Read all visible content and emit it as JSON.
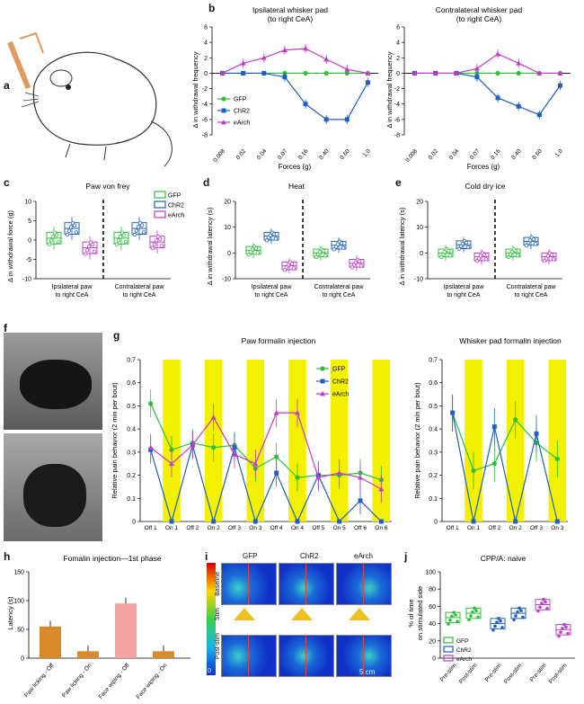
{
  "labels": {
    "a": "a",
    "b": "b",
    "c": "c",
    "d": "d",
    "e": "e",
    "f": "f",
    "g": "g",
    "h": "h",
    "i": "i",
    "j": "j"
  },
  "colors": {
    "gfp": "#2bbf3a",
    "chr2": "#1f5fbf",
    "earch": "#c03cc8",
    "yellow": "#f3f000",
    "orange": "#d98a2b",
    "pink": "#f4a3a3"
  },
  "panel_b": {
    "left_title": "Ipsilateral whisker pad\n(to right CeA)",
    "right_title": "Contralateral whisker pad\n(to right CeA)",
    "ylabel": "Δ in withdrawal frequency",
    "xlabel": "Forces (g)",
    "legend": [
      "GFP",
      "ChR2",
      "eArch"
    ]
  },
  "panel_c": {
    "title": "Paw von frey",
    "ylabel": "Δ in withdrawal force (g)",
    "cats": [
      "Ipsilateral paw\nto right CeA",
      "Contralateral paw\nto right CeA"
    ],
    "legend": [
      "GFP",
      "ChR2",
      "eArch"
    ]
  },
  "panel_d": {
    "title": "Heat",
    "ylabel": "Δ in withdrawal latency (s)",
    "cats": [
      "Ipsilateral paw\nto right CeA",
      "Contralateral paw\nto right CeA"
    ]
  },
  "panel_e": {
    "title": "Cold dry ice",
    "ylabel": "Δ in withdrawal latency (s)",
    "cats": [
      "Ipsilateral paw\nto right CeA",
      "Contralateral paw\nto right CeA"
    ]
  },
  "panel_g": {
    "left_title": "Paw formalin injection",
    "right_title": "Whisker pad formalin injection",
    "ylabel": "Relative pain behavior (2 min per bout)",
    "legend": [
      "GFP",
      "ChR2",
      "eArch"
    ]
  },
  "panel_h": {
    "title": "Fomalin injection—1st phase",
    "ylabel": "Latency (s)",
    "cats": [
      "Paw licking - Off",
      "Paw licking - On",
      "Face wiping - Off",
      "Face wiping - On"
    ]
  },
  "panel_i": {
    "cols": [
      "GFP",
      "ChR2",
      "eArch"
    ],
    "rows": [
      "Baseline",
      "Post-stim"
    ],
    "stim": "Stim",
    "scale": "5 cm",
    "cb_top": "1",
    "cb_bottom": "0"
  },
  "panel_j": {
    "title": "CPP/A: naive",
    "ylabel": "% of time\non stimulated side",
    "legend": [
      "GFP",
      "ChR2",
      "eArch"
    ],
    "xcats": [
      "Pre-stim",
      "Post-stim",
      "Pre-stim",
      "Post-stim",
      "Pre-stim",
      "Post-stim"
    ]
  },
  "chart_data": [
    {
      "type": "line",
      "panel": "b-left",
      "x": [
        "0.008",
        "0.02",
        "0.04",
        "0.07",
        "0.16",
        "0.40",
        "0.60",
        "1.0"
      ],
      "ylim": [
        -8,
        6
      ],
      "series": [
        {
          "name": "GFP",
          "values": [
            0,
            0,
            0,
            0,
            0,
            0,
            0,
            0
          ]
        },
        {
          "name": "ChR2",
          "values": [
            0,
            0,
            0,
            -0.5,
            -4,
            -6,
            -6,
            -1.2
          ]
        },
        {
          "name": "eArch",
          "values": [
            0,
            1.3,
            2,
            3,
            3.2,
            1.8,
            0.5,
            0
          ]
        }
      ]
    },
    {
      "type": "line",
      "panel": "b-right",
      "x": [
        "0.008",
        "0.02",
        "0.04",
        "0.07",
        "0.16",
        "0.40",
        "0.60",
        "1.0"
      ],
      "ylim": [
        -8,
        6
      ],
      "series": [
        {
          "name": "GFP",
          "values": [
            0,
            0,
            0,
            0,
            0,
            0,
            0,
            0
          ]
        },
        {
          "name": "ChR2",
          "values": [
            0,
            0,
            0,
            -0.5,
            -3.2,
            -4.3,
            -5.4,
            -1.6
          ]
        },
        {
          "name": "eArch",
          "values": [
            0,
            0,
            0,
            0.6,
            2.5,
            1.3,
            0,
            0
          ]
        }
      ]
    },
    {
      "type": "line",
      "panel": "g-left",
      "x": [
        "Off 1",
        "On 1",
        "Off 2",
        "On 2",
        "Off 3",
        "On 3",
        "Off 4",
        "On 4",
        "Off 5",
        "On 5",
        "Off 6",
        "On 6"
      ],
      "ylim": [
        0,
        0.7
      ],
      "series": [
        {
          "name": "GFP",
          "values": [
            0.51,
            0.31,
            0.34,
            0.32,
            0.33,
            0.23,
            0.28,
            0.19,
            0.2,
            0.2,
            0.21,
            0.18
          ]
        },
        {
          "name": "ChR2",
          "values": [
            0.31,
            0,
            0.33,
            0,
            0.32,
            0,
            0.21,
            0,
            0.2,
            0,
            0.09,
            0
          ]
        },
        {
          "name": "eArch",
          "values": [
            0.32,
            0.25,
            0.33,
            0.45,
            0.29,
            0.25,
            0.47,
            0.47,
            0.19,
            0.21,
            0.19,
            0.14
          ]
        }
      ]
    },
    {
      "type": "line",
      "panel": "g-right",
      "x": [
        "Off 1",
        "On 1",
        "Off 2",
        "On 2",
        "Off 3",
        "On 3"
      ],
      "ylim": [
        0,
        0.7
      ],
      "series": [
        {
          "name": "GFP",
          "values": [
            0.47,
            0.22,
            0.25,
            0.44,
            0.34,
            0.27
          ]
        },
        {
          "name": "ChR2",
          "values": [
            0.47,
            0,
            0.41,
            0,
            0.38,
            0
          ]
        }
      ]
    },
    {
      "type": "bar",
      "panel": "h",
      "categories": [
        "Paw licking - Off",
        "Paw licking - On",
        "Face wiping - Off",
        "Face wiping - On"
      ],
      "values": [
        55,
        12,
        95,
        12
      ],
      "ylim": [
        0,
        150
      ]
    }
  ]
}
